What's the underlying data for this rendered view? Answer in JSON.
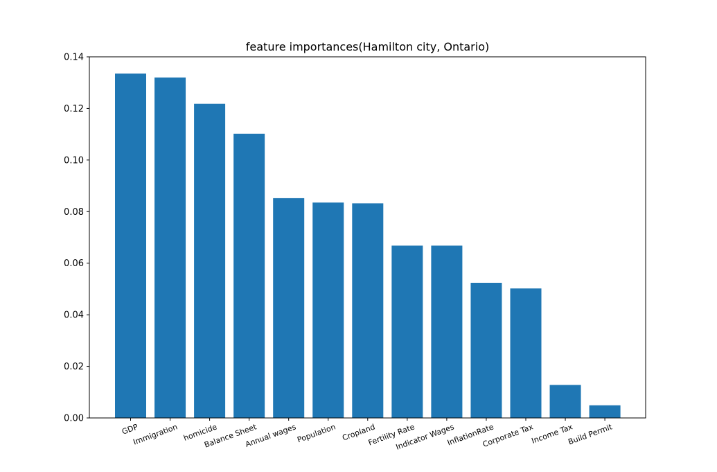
{
  "chart_data": {
    "type": "bar",
    "title": "feature importances(Hamilton city, Ontario)",
    "xlabel": "",
    "ylabel": "",
    "categories": [
      "GDP",
      "Immigration",
      "homicide",
      "Balance Sheet",
      "Annual wages",
      "Population",
      "Cropland",
      "Fertility Rate",
      "Indicator Wages",
      "InflationRate",
      "Corporate Tax",
      "Income Tax",
      "Build Permit"
    ],
    "values": [
      0.1335,
      0.132,
      0.1218,
      0.1102,
      0.0852,
      0.0835,
      0.0832,
      0.0668,
      0.0668,
      0.0524,
      0.0502,
      0.0128,
      0.0049
    ],
    "ylim": [
      0,
      0.14
    ],
    "yticks": [
      0.0,
      0.02,
      0.04,
      0.06,
      0.08,
      0.1,
      0.12,
      0.14
    ],
    "ytick_labels": [
      "0.00",
      "0.02",
      "0.04",
      "0.06",
      "0.08",
      "0.10",
      "0.12",
      "0.14"
    ],
    "bar_color": "#1f77b4",
    "grid": false,
    "legend": "none"
  }
}
